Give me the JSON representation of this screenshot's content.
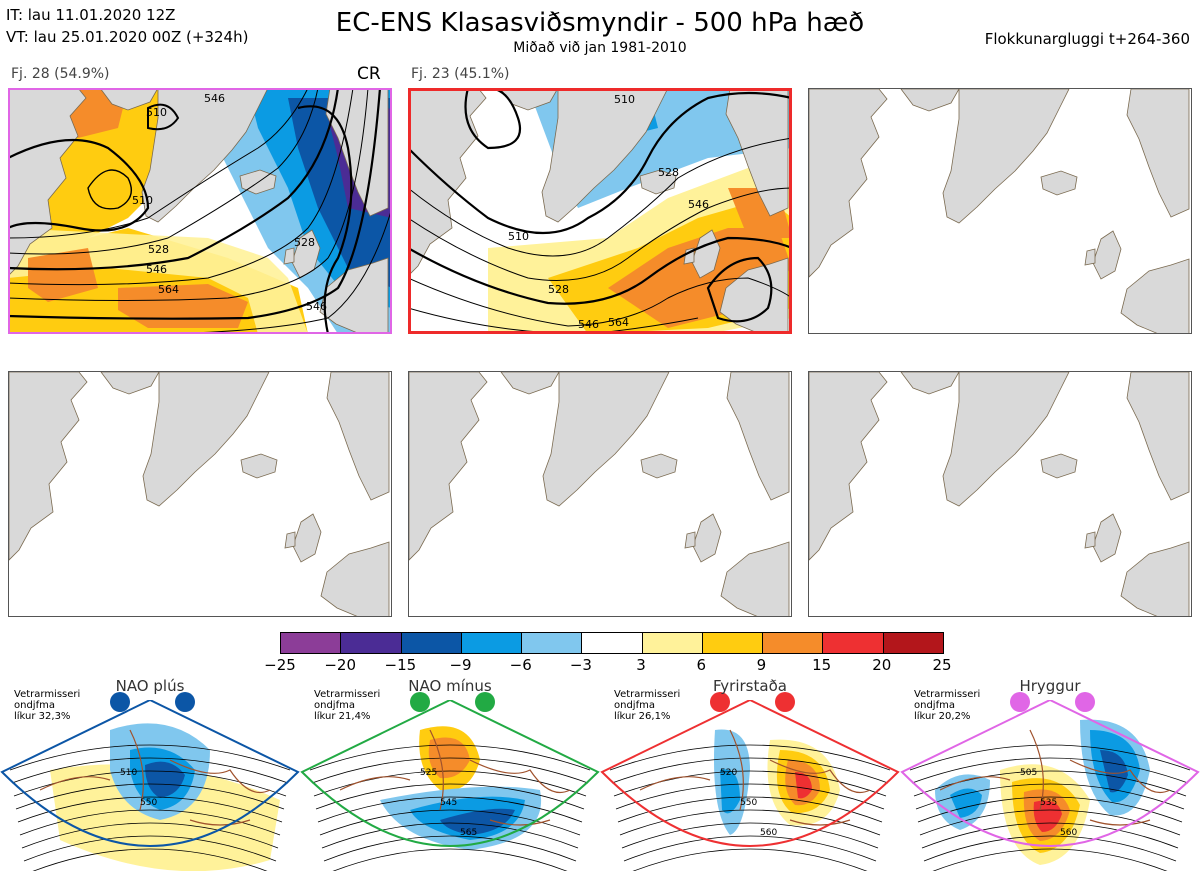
{
  "header": {
    "it": "IT: lau 11.01.2020 12Z",
    "vt": "VT: lau 25.01.2020 00Z  (+324h)",
    "title": "EC-ENS Klasasviðsmyndir - 500 hPa hæð",
    "subtitle": "Miðað við jan 1981-2010",
    "window": "Flokkunargluggi t+264-360"
  },
  "panels": [
    {
      "label": "Fj. 28 (54.9%)",
      "tag": "CR",
      "border": "#e066e6",
      "contours": [
        "510",
        "510",
        "528",
        "546",
        "564",
        "546",
        "528",
        "546"
      ]
    },
    {
      "label": "Fj. 23 (45.1%)",
      "tag": "",
      "border": "#ee2a2a",
      "contours": [
        "510",
        "528",
        "546",
        "510",
        "528",
        "546",
        "564"
      ]
    },
    {
      "label": "",
      "tag": "",
      "border": ""
    },
    {
      "label": "",
      "tag": "",
      "border": ""
    },
    {
      "label": "",
      "tag": "",
      "border": ""
    },
    {
      "label": "",
      "tag": "",
      "border": ""
    }
  ],
  "colorbar": {
    "colors": [
      "#8c3d98",
      "#4b2c95",
      "#0c56a6",
      "#0b9be3",
      "#80c7ee",
      "#ffffff",
      "#fff29a",
      "#ffcc10",
      "#f58c2a",
      "#ee3032",
      "#b3161b"
    ],
    "ticks": [
      "−25",
      "−20",
      "−15",
      "−9",
      "−6",
      "−3",
      "3",
      "6",
      "9",
      "15",
      "20",
      "25"
    ]
  },
  "regimes": [
    {
      "name": "NAO plús",
      "stat": [
        "Vetrarmisseri",
        "ondjfma",
        "líkur 32,3%"
      ],
      "color": "#0c56a6",
      "contours": [
        "510",
        "550"
      ]
    },
    {
      "name": "NAO mínus",
      "stat": [
        "Vetrarmisseri",
        "ondjfma",
        "líkur 21,4%"
      ],
      "color": "#22aa44",
      "contours": [
        "525",
        "545",
        "565"
      ]
    },
    {
      "name": "Fyrirstaða",
      "stat": [
        "Vetrarmisseri",
        "ondjfma",
        "líkur 26,1%"
      ],
      "color": "#ee3032",
      "contours": [
        "520",
        "550",
        "560"
      ]
    },
    {
      "name": "Hryggur",
      "stat": [
        "Vetrarmisseri",
        "ondjfma",
        "líkur 20,2%"
      ],
      "color": "#e066e6",
      "contours": [
        "505",
        "535",
        "560"
      ]
    }
  ]
}
